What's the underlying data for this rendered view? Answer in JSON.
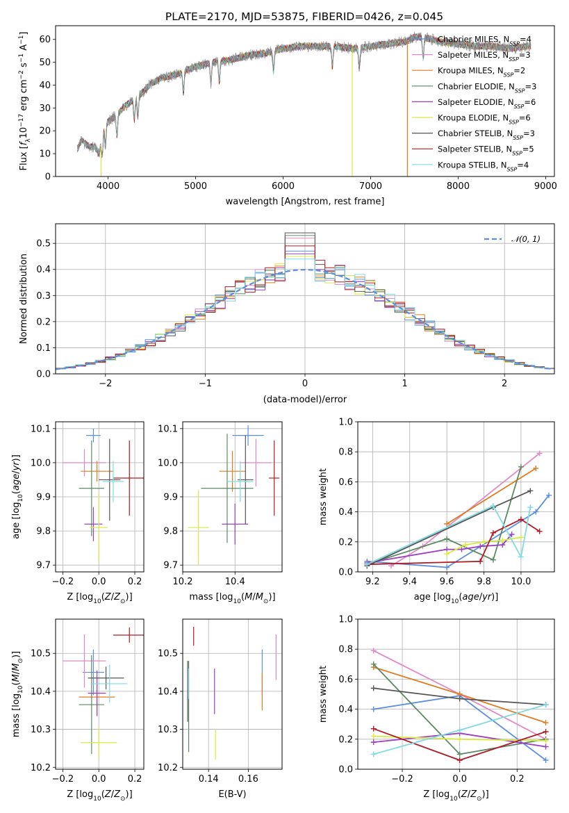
{
  "figure": {
    "title": "PLATE=2170, MJD=53875, FIBERID=0426, z=0.045"
  },
  "colors": {
    "Chabrier MILES": "#5a8ee0",
    "Salpeter MILES": "#e387c4",
    "Kroupa MILES": "#e07b1f",
    "Chabrier ELODIE": "#5a8a62",
    "Salpeter ELODIE": "#9a3fc3",
    "Kroupa ELODIE": "#d9ea3e",
    "Chabrier STELIB": "#555555",
    "Salpeter STELIB": "#b01a24",
    "Kroupa STELIB": "#7fdbe0"
  },
  "chart_data": [
    {
      "type": "line",
      "title": "PLATE=2170, MJD=53875, FIBERID=0426, z=0.045",
      "xlabel": "wavelength [Angstrom, rest frame]",
      "ylabel": "Flux [f_λ10^-17 erg cm^-2 s^-1 A^-1]",
      "xlim": [
        3400,
        9100
      ],
      "ylim": [
        0,
        66
      ],
      "xticks": [
        4000,
        5000,
        6000,
        7000,
        8000,
        9000
      ],
      "yticks": [
        0,
        10,
        20,
        30,
        40,
        50,
        60
      ],
      "grid": false,
      "legend_position": "right",
      "legend": [
        {
          "name": "Chabrier MILES",
          "nssp": "4"
        },
        {
          "name": "Salpeter MILES",
          "nssp": "3"
        },
        {
          "name": "Kroupa MILES",
          "nssp": "2"
        },
        {
          "name": "Chabrier ELODIE",
          "nssp": "3"
        },
        {
          "name": "Salpeter ELODIE",
          "nssp": "6"
        },
        {
          "name": "Kroupa ELODIE",
          "nssp": "6"
        },
        {
          "name": "Chabrier STELIB",
          "nssp": "3"
        },
        {
          "name": "Salpeter STELIB",
          "nssp": "5"
        },
        {
          "name": "Kroupa STELIB",
          "nssp": "4"
        }
      ],
      "continuum_x": [
        3650,
        3700,
        3750,
        3800,
        3850,
        3900,
        3950,
        4000,
        4100,
        4200,
        4300,
        4400,
        4500,
        4600,
        4800,
        5000,
        5200,
        5400,
        5600,
        5800,
        6000,
        6200,
        6400,
        6600,
        6800,
        7000,
        7200,
        7400,
        7500,
        7600,
        7800,
        8000,
        8200,
        8400,
        8600,
        8800
      ],
      "continuum_y": [
        12,
        16,
        14,
        13,
        13,
        10,
        22,
        24,
        27,
        31,
        34,
        37,
        41,
        43,
        45,
        48,
        50,
        51,
        53,
        54,
        56,
        57,
        57,
        57,
        56,
        57,
        58,
        59,
        61,
        61,
        59,
        58,
        57,
        57,
        56,
        57
      ],
      "sharp_drops": [
        {
          "series": "Kroupa ELODIE",
          "x": 6790
        },
        {
          "series": "Kroupa MILES",
          "x": 7420
        },
        {
          "series": "Kroupa ELODIE",
          "x": 3920
        }
      ],
      "absorption_lines": [
        3934,
        3969,
        4102,
        4300,
        4340,
        4861,
        5175,
        5270,
        5890,
        6563,
        6870,
        7600
      ]
    },
    {
      "type": "area",
      "xlabel": "(data-model)/error",
      "ylabel": "Normed distribution",
      "xlim": [
        -2.5,
        2.5
      ],
      "ylim": [
        0,
        0.575
      ],
      "xticks": [
        -2,
        -1,
        0,
        1,
        2
      ],
      "yticks": [
        0.0,
        0.1,
        0.2,
        0.3,
        0.4,
        0.5
      ],
      "grid": true,
      "legend": [
        {
          "name": "𝒩(0, 1)",
          "style": "dashed"
        }
      ],
      "legend_position": "top-right",
      "bin_width": 0.1,
      "peak_values": [
        0.47,
        0.52,
        0.45,
        0.53,
        0.46,
        0.45,
        0.54,
        0.49,
        0.44
      ]
    },
    {
      "type": "scatter",
      "xlabel": "Z [log10(Z/Z☉)]",
      "ylabel": "age  [log10(age/yr)]",
      "xlim": [
        -0.24,
        0.25
      ],
      "ylim": [
        9.68,
        10.12
      ],
      "xticks": [
        -0.2,
        0.0,
        0.2
      ],
      "yticks": [
        9.7,
        9.8,
        9.9,
        10.0,
        10.1
      ],
      "grid": true,
      "points": [
        {
          "series": "Chabrier MILES",
          "x": -0.03,
          "y": 10.08,
          "xerr": 0.04,
          "yerr": 0.02
        },
        {
          "series": "Salpeter MILES",
          "x": -0.08,
          "y": 10.0,
          "xerr": 0.12,
          "yerr": 0.04
        },
        {
          "series": "Kroupa MILES",
          "x": -0.01,
          "y": 9.975,
          "xerr": 0.09,
          "yerr": 0.03
        },
        {
          "series": "Chabrier ELODIE",
          "x": -0.04,
          "y": 9.925,
          "xerr": 0.07,
          "yerr": 0.14
        },
        {
          "series": "Salpeter ELODIE",
          "x": -0.03,
          "y": 9.82,
          "xerr": 0.05,
          "yerr": 0.05
        },
        {
          "series": "Kroupa ELODIE",
          "x": 0.0,
          "y": 9.81,
          "xerr": 0.05,
          "yerr": 0.1
        },
        {
          "series": "Chabrier STELIB",
          "x": 0.06,
          "y": 9.95,
          "xerr": 0.06,
          "yerr": 0.12
        },
        {
          "series": "Salpeter STELIB",
          "x": 0.17,
          "y": 9.955,
          "xerr": 0.09,
          "yerr": 0.11
        },
        {
          "series": "Kroupa STELIB",
          "x": 0.08,
          "y": 9.945,
          "xerr": 0.06,
          "yerr": 0.06
        }
      ]
    },
    {
      "type": "scatter",
      "xlabel": "mass [log10(M/M☉)]",
      "ylabel": "",
      "xlim": [
        10.2,
        10.58
      ],
      "ylim": [
        9.68,
        10.12
      ],
      "xticks": [
        10.2,
        10.4
      ],
      "yticks": [
        9.7,
        9.8,
        9.9,
        10.0,
        10.1
      ],
      "grid": true,
      "points": [
        {
          "series": "Chabrier MILES",
          "x": 10.45,
          "y": 10.08,
          "xerr": 0.06,
          "yerr": 0.03
        },
        {
          "series": "Salpeter MILES",
          "x": 10.48,
          "y": 10.0,
          "xerr": 0.06,
          "yerr": 0.07
        },
        {
          "series": "Kroupa MILES",
          "x": 10.39,
          "y": 9.975,
          "xerr": 0.05,
          "yerr": 0.06
        },
        {
          "series": "Chabrier ELODIE",
          "x": 10.37,
          "y": 9.925,
          "xerr": 0.1,
          "yerr": 0.16
        },
        {
          "series": "Salpeter ELODIE",
          "x": 10.4,
          "y": 9.82,
          "xerr": 0.05,
          "yerr": 0.06
        },
        {
          "series": "Kroupa ELODIE",
          "x": 10.26,
          "y": 9.81,
          "xerr": 0.04,
          "yerr": 0.11
        },
        {
          "series": "Chabrier STELIB",
          "x": 10.44,
          "y": 9.95,
          "xerr": 0.03,
          "yerr": 0.13
        },
        {
          "series": "Salpeter STELIB",
          "x": 10.55,
          "y": 9.955,
          "xerr": 0.02,
          "yerr": 0.11
        },
        {
          "series": "Kroupa STELIB",
          "x": 10.42,
          "y": 9.945,
          "xerr": 0.05,
          "yerr": 0.06
        }
      ]
    },
    {
      "type": "line",
      "xlabel": "age  [log10(age/yr)]",
      "ylabel": "mass weight",
      "xlim": [
        9.12,
        10.18
      ],
      "ylim": [
        0.0,
        1.0
      ],
      "xticks": [
        9.2,
        9.4,
        9.6,
        9.8,
        10.0
      ],
      "yticks": [
        0.0,
        0.2,
        0.4,
        0.6,
        0.8,
        1.0
      ],
      "grid": true,
      "series": [
        {
          "name": "Chabrier MILES",
          "x": [
            9.17,
            9.6,
            10.08,
            10.15
          ],
          "y": [
            0.07,
            0.03,
            0.4,
            0.51
          ]
        },
        {
          "name": "Salpeter MILES",
          "x": [
            9.3,
            9.47,
            10.1
          ],
          "y": [
            0.04,
            0.17,
            0.79
          ]
        },
        {
          "name": "Kroupa MILES",
          "x": [
            9.6,
            10.08
          ],
          "y": [
            0.32,
            0.69
          ]
        },
        {
          "name": "Chabrier ELODIE",
          "x": [
            9.17,
            9.6,
            9.85,
            10.0
          ],
          "y": [
            0.05,
            0.22,
            0.08,
            0.7
          ]
        },
        {
          "name": "Salpeter ELODIE",
          "x": [
            9.17,
            9.6,
            9.68,
            9.78,
            9.9,
            9.95
          ],
          "y": [
            0.06,
            0.15,
            0.15,
            0.17,
            0.18,
            0.25
          ]
        },
        {
          "name": "Kroupa ELODIE",
          "x": [
            9.6,
            9.7,
            9.8,
            9.9,
            10.0
          ],
          "y": [
            0.12,
            0.18,
            0.2,
            0.21,
            0.23
          ]
        },
        {
          "name": "Chabrier STELIB",
          "x": [
            9.17,
            9.85,
            10.05
          ],
          "y": [
            0.04,
            0.43,
            0.54
          ]
        },
        {
          "name": "Salpeter STELIB",
          "x": [
            9.17,
            9.78,
            9.85,
            10.0,
            10.1
          ],
          "y": [
            0.05,
            0.07,
            0.26,
            0.35,
            0.27
          ]
        },
        {
          "name": "Kroupa STELIB",
          "x": [
            9.17,
            9.85,
            10.0,
            10.05
          ],
          "y": [
            0.05,
            0.44,
            0.1,
            0.43
          ]
        }
      ]
    },
    {
      "type": "scatter",
      "xlabel": "Z [log10(Z/Z☉)]",
      "ylabel": "mass [log10(M/M☉)]",
      "xlim": [
        -0.24,
        0.25
      ],
      "ylim": [
        10.195,
        10.59
      ],
      "xticks": [
        -0.2,
        0.0,
        0.2
      ],
      "yticks": [
        10.2,
        10.3,
        10.4,
        10.5
      ],
      "grid": true,
      "points": [
        {
          "series": "Chabrier MILES",
          "x": -0.03,
          "y": 10.45,
          "xerr": 0.06,
          "yerr": 0.06
        },
        {
          "series": "Salpeter MILES",
          "x": -0.08,
          "y": 10.48,
          "xerr": 0.12,
          "yerr": 0.07
        },
        {
          "series": "Kroupa MILES",
          "x": -0.01,
          "y": 10.385,
          "xerr": 0.1,
          "yerr": 0.05
        },
        {
          "series": "Chabrier ELODIE",
          "x": -0.04,
          "y": 10.365,
          "xerr": 0.07,
          "yerr": 0.13
        },
        {
          "series": "Salpeter ELODIE",
          "x": -0.01,
          "y": 10.395,
          "xerr": 0.05,
          "yerr": 0.06
        },
        {
          "series": "Kroupa ELODIE",
          "x": 0.0,
          "y": 10.265,
          "xerr": 0.1,
          "yerr": 0.04
        },
        {
          "series": "Chabrier STELIB",
          "x": 0.04,
          "y": 10.435,
          "xerr": 0.1,
          "yerr": 0.03
        },
        {
          "series": "Salpeter STELIB",
          "x": 0.17,
          "y": 10.548,
          "xerr": 0.09,
          "yerr": 0.02
        },
        {
          "series": "Kroupa STELIB",
          "x": 0.06,
          "y": 10.42,
          "xerr": 0.1,
          "yerr": 0.05
        }
      ]
    },
    {
      "type": "scatter",
      "xlabel": "E(B-V)",
      "ylabel": "",
      "xlim": [
        0.127,
        0.177
      ],
      "ylim": [
        10.195,
        10.59
      ],
      "xticks": [
        0.14,
        0.16
      ],
      "yticks": [
        10.2,
        10.3,
        10.4,
        10.5
      ],
      "grid": true,
      "points": [
        {
          "series": "Chabrier MILES",
          "x": 0.167,
          "y": 10.45,
          "yerr": 0.06
        },
        {
          "series": "Salpeter MILES",
          "x": 0.174,
          "y": 10.49,
          "yerr": 0.06
        },
        {
          "series": "Kroupa MILES",
          "x": 0.167,
          "y": 10.4,
          "yerr": 0.05
        },
        {
          "series": "Chabrier ELODIE",
          "x": 0.13,
          "y": 10.36,
          "yerr": 0.12
        },
        {
          "series": "Salpeter ELODIE",
          "x": 0.143,
          "y": 10.4,
          "yerr": 0.06
        },
        {
          "series": "Kroupa ELODIE",
          "x": 0.1435,
          "y": 10.26,
          "yerr": 0.04
        },
        {
          "series": "Chabrier STELIB",
          "x": 0.1295,
          "y": 10.4,
          "yerr": 0.08
        },
        {
          "series": "Salpeter STELIB",
          "x": 0.1325,
          "y": 10.545,
          "yerr": 0.025
        },
        {
          "series": "Kroupa STELIB",
          "x": 0.13,
          "y": 10.42,
          "yerr": 0.04
        }
      ]
    },
    {
      "type": "line",
      "xlabel": "Z [log10(Z/Z☉)]",
      "ylabel": "mass weight",
      "xlim": [
        -0.355,
        0.33
      ],
      "ylim": [
        0.0,
        1.0
      ],
      "xticks": [
        -0.2,
        0.0,
        0.2
      ],
      "yticks": [
        0.0,
        0.2,
        0.4,
        0.6,
        0.8,
        1.0
      ],
      "grid": true,
      "series": [
        {
          "name": "Chabrier MILES",
          "x": [
            -0.3,
            0.0,
            0.3
          ],
          "y": [
            0.4,
            0.49,
            0.06
          ]
        },
        {
          "name": "Salpeter MILES",
          "x": [
            -0.3,
            0.0,
            0.3
          ],
          "y": [
            0.79,
            0.5,
            0.2
          ]
        },
        {
          "name": "Kroupa MILES",
          "x": [
            -0.3,
            0.0,
            0.3
          ],
          "y": [
            0.68,
            0.5,
            0.31
          ]
        },
        {
          "name": "Chabrier ELODIE",
          "x": [
            -0.3,
            0.0,
            0.3
          ],
          "y": [
            0.7,
            0.1,
            0.2
          ]
        },
        {
          "name": "Salpeter ELODIE",
          "x": [
            -0.3,
            0.0,
            0.3
          ],
          "y": [
            0.18,
            0.24,
            0.15
          ]
        },
        {
          "name": "Kroupa ELODIE",
          "x": [
            -0.3,
            0.0,
            0.3
          ],
          "y": [
            0.22,
            0.2,
            0.19
          ]
        },
        {
          "name": "Chabrier STELIB",
          "x": [
            -0.3,
            0.0,
            0.3
          ],
          "y": [
            0.54,
            0.47,
            0.43
          ]
        },
        {
          "name": "Salpeter STELIB",
          "x": [
            -0.3,
            0.0,
            0.3
          ],
          "y": [
            0.27,
            0.06,
            0.25
          ]
        },
        {
          "name": "Kroupa STELIB",
          "x": [
            -0.3,
            0.0,
            0.3
          ],
          "y": [
            0.1,
            0.26,
            0.43
          ]
        }
      ]
    }
  ]
}
